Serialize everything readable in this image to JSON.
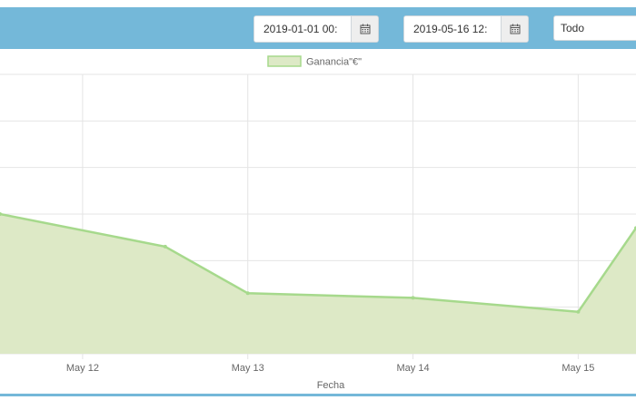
{
  "toolbar": {
    "start_date": "2019-01-01 00:",
    "end_date": "2019-05-16 12:",
    "filter_selected": "Todo",
    "calendar_icon": "calendar-icon"
  },
  "colors": {
    "toolbar": "#74b8d9",
    "series_fill": "#dde9c6",
    "series_line": "#a6d98c",
    "grid": "#e4e4e4"
  },
  "chart_data": {
    "type": "area",
    "categories": [
      "May 12",
      "May 13",
      "May 14",
      "May 15"
    ],
    "x": [
      11.5,
      12.5,
      13.0,
      14.0,
      15.0,
      15.35
    ],
    "series": [
      {
        "name": "Ganancia\"€\"",
        "values": [
          3.0,
          2.3,
          1.3,
          1.2,
          0.9,
          2.7
        ]
      }
    ],
    "title": "",
    "xlabel": "Fecha",
    "ylabel": "",
    "xlim": [
      11.5,
      15.35
    ],
    "ylim": [
      0,
      6
    ],
    "grid": true,
    "legend": "top-center"
  }
}
